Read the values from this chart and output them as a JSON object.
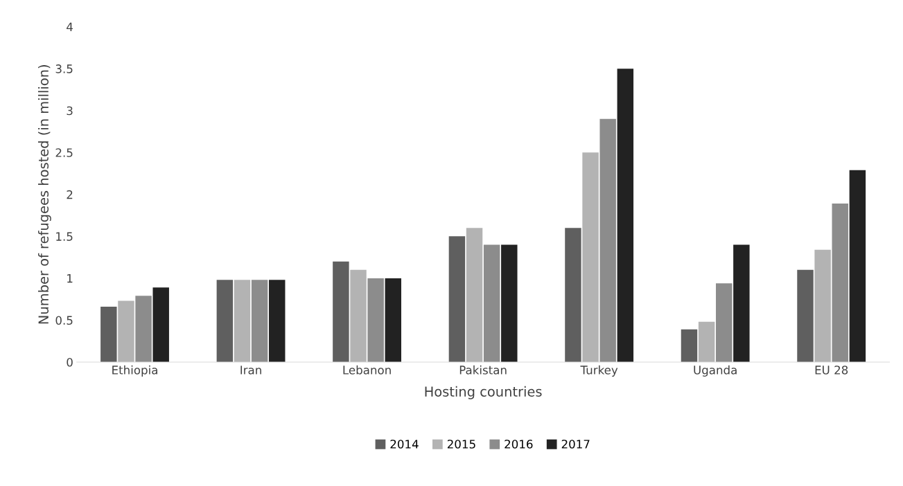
{
  "chart_data": {
    "type": "bar",
    "xlabel": "Hosting countries",
    "ylabel": "Number of refugees hosted (in million)",
    "categories": [
      "Ethiopia",
      "Iran",
      "Lebanon",
      "Pakistan",
      "Turkey",
      "Uganda",
      "EU 28"
    ],
    "series": [
      {
        "name": "2014",
        "color": "#5f5f5f",
        "values": [
          0.66,
          0.98,
          1.2,
          1.5,
          1.6,
          0.39,
          1.1
        ]
      },
      {
        "name": "2015",
        "color": "#b3b3b3",
        "values": [
          0.73,
          0.98,
          1.1,
          1.6,
          2.5,
          0.48,
          1.34
        ]
      },
      {
        "name": "2016",
        "color": "#8c8c8c",
        "values": [
          0.79,
          0.98,
          1.0,
          1.4,
          2.9,
          0.94,
          1.89
        ]
      },
      {
        "name": "2017",
        "color": "#222222",
        "values": [
          0.89,
          0.98,
          1.0,
          1.4,
          3.5,
          1.4,
          2.29
        ]
      }
    ],
    "ylim": [
      0,
      4
    ],
    "yticks": [
      0,
      0.5,
      1,
      1.5,
      2,
      2.5,
      3,
      3.5,
      4
    ],
    "grid": false,
    "legend": "bottom"
  }
}
